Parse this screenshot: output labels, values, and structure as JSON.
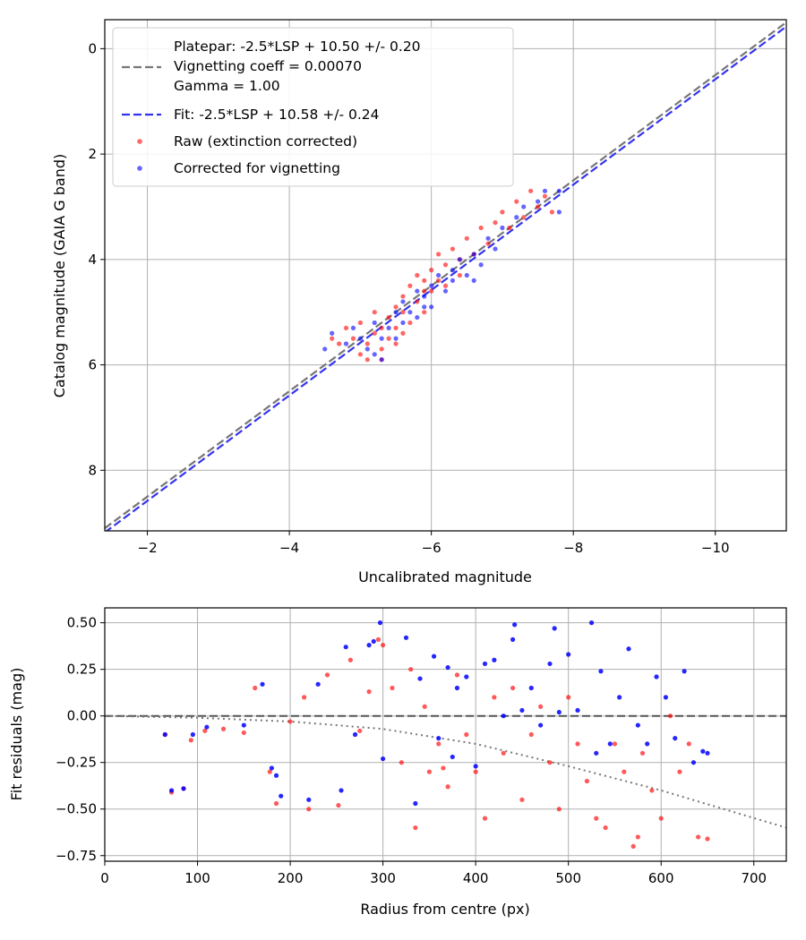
{
  "chart_data": [
    {
      "type": "scatter",
      "xlabel": "Uncalibrated magnitude",
      "ylabel": "Catalog magnitude (GAIA G band)",
      "xlim": [
        -1.4,
        -11.0
      ],
      "ylim": [
        9.15,
        -0.55
      ],
      "x_inverted": true,
      "y_inverted": true,
      "grid": true,
      "xticks": [
        -2,
        -4,
        -6,
        -8,
        -10
      ],
      "xtick_labels": [
        "−2",
        "−4",
        "−6",
        "−8",
        "−10"
      ],
      "yticks": [
        0,
        2,
        4,
        6,
        8
      ],
      "ytick_labels": [
        "0",
        "2",
        "4",
        "6",
        "8"
      ],
      "legend": {
        "placement": "upper-left",
        "platepar_line1": "Platepar: -2.5*LSP + 10.50 +/- 0.20",
        "platepar_line2": "Vignetting coeff = 0.00070",
        "platepar_line3": "Gamma = 1.00",
        "fit": "Fit: -2.5*LSP + 10.58 +/- 0.24",
        "raw": "Raw (extinction corrected)",
        "corrected": "Corrected for vignetting"
      },
      "lines": [
        {
          "name": "Platepar",
          "slope": -2.5,
          "intercept": 10.5,
          "uncertainty": 0.2,
          "color": "#777777",
          "style": "dashed"
        },
        {
          "name": "Fit",
          "slope": -2.5,
          "intercept": 10.58,
          "uncertainty": 0.24,
          "color": "#3333ee",
          "style": "dashed"
        }
      ],
      "series": [
        {
          "name": "Raw (extinction corrected)",
          "color": "#ff0000",
          "points": [
            [
              -4.6,
              5.5
            ],
            [
              -4.7,
              5.6
            ],
            [
              -4.8,
              5.3
            ],
            [
              -4.9,
              5.5
            ],
            [
              -5.0,
              5.8
            ],
            [
              -5.0,
              5.2
            ],
            [
              -5.1,
              5.9
            ],
            [
              -5.2,
              5.4
            ],
            [
              -5.2,
              5.0
            ],
            [
              -5.3,
              5.7
            ],
            [
              -5.3,
              5.3
            ],
            [
              -5.4,
              5.1
            ],
            [
              -5.4,
              5.5
            ],
            [
              -5.5,
              4.9
            ],
            [
              -5.5,
              5.3
            ],
            [
              -5.5,
              5.6
            ],
            [
              -5.6,
              4.7
            ],
            [
              -5.6,
              5.0
            ],
            [
              -5.7,
              4.5
            ],
            [
              -5.7,
              5.2
            ],
            [
              -5.8,
              4.8
            ],
            [
              -5.8,
              4.3
            ],
            [
              -5.9,
              4.6
            ],
            [
              -5.9,
              5.0
            ],
            [
              -6.0,
              4.2
            ],
            [
              -6.0,
              4.6
            ],
            [
              -6.1,
              4.4
            ],
            [
              -6.1,
              3.9
            ],
            [
              -6.2,
              4.1
            ],
            [
              -6.2,
              4.5
            ],
            [
              -6.3,
              3.8
            ],
            [
              -6.4,
              4.0
            ],
            [
              -6.5,
              3.6
            ],
            [
              -6.6,
              3.9
            ],
            [
              -6.7,
              3.4
            ],
            [
              -6.8,
              3.7
            ],
            [
              -6.9,
              3.3
            ],
            [
              -7.0,
              3.1
            ],
            [
              -7.1,
              3.4
            ],
            [
              -7.2,
              2.9
            ],
            [
              -7.3,
              3.2
            ],
            [
              -7.4,
              2.7
            ],
            [
              -7.5,
              3.0
            ],
            [
              -7.6,
              2.8
            ],
            [
              -7.7,
              3.1
            ],
            [
              -5.1,
              5.6
            ],
            [
              -5.3,
              5.9
            ],
            [
              -5.6,
              5.4
            ],
            [
              -5.9,
              4.4
            ],
            [
              -6.4,
              4.3
            ]
          ]
        },
        {
          "name": "Corrected for vignetting",
          "color": "#0000ff",
          "points": [
            [
              -4.5,
              5.7
            ],
            [
              -4.6,
              5.4
            ],
            [
              -4.8,
              5.6
            ],
            [
              -4.9,
              5.3
            ],
            [
              -5.0,
              5.5
            ],
            [
              -5.1,
              5.7
            ],
            [
              -5.2,
              5.2
            ],
            [
              -5.3,
              5.9
            ],
            [
              -5.3,
              5.5
            ],
            [
              -5.4,
              5.3
            ],
            [
              -5.5,
              5.0
            ],
            [
              -5.6,
              5.2
            ],
            [
              -5.6,
              4.8
            ],
            [
              -5.7,
              5.0
            ],
            [
              -5.8,
              4.6
            ],
            [
              -5.8,
              5.1
            ],
            [
              -5.9,
              4.7
            ],
            [
              -6.0,
              4.5
            ],
            [
              -6.0,
              4.9
            ],
            [
              -6.1,
              4.3
            ],
            [
              -6.2,
              4.6
            ],
            [
              -6.3,
              4.2
            ],
            [
              -6.3,
              4.4
            ],
            [
              -6.4,
              4.0
            ],
            [
              -6.5,
              4.3
            ],
            [
              -6.6,
              3.9
            ],
            [
              -6.7,
              4.1
            ],
            [
              -6.8,
              3.6
            ],
            [
              -6.9,
              3.8
            ],
            [
              -7.0,
              3.4
            ],
            [
              -7.2,
              3.2
            ],
            [
              -7.3,
              3.0
            ],
            [
              -7.5,
              2.9
            ],
            [
              -7.6,
              2.7
            ],
            [
              -7.8,
              2.7
            ],
            [
              -7.8,
              3.1
            ],
            [
              -5.2,
              5.8
            ],
            [
              -5.5,
              5.5
            ],
            [
              -5.9,
              4.9
            ],
            [
              -6.6,
              4.4
            ]
          ]
        }
      ]
    },
    {
      "type": "scatter",
      "xlabel": "Radius from centre (px)",
      "ylabel": "Fit residuals (mag)",
      "xlim": [
        0,
        735
      ],
      "ylim": [
        -0.78,
        0.58
      ],
      "grid": true,
      "xticks": [
        0,
        100,
        200,
        300,
        400,
        500,
        600,
        700
      ],
      "xtick_labels": [
        "0",
        "100",
        "200",
        "300",
        "400",
        "500",
        "600",
        "700"
      ],
      "yticks": [
        0.5,
        0.25,
        0.0,
        -0.25,
        -0.5,
        -0.75
      ],
      "ytick_labels": [
        "0.50",
        "0.25",
        "0.00",
        "−0.25",
        "−0.50",
        "−0.75"
      ],
      "lines": [
        {
          "name": "zero",
          "type": "hline",
          "y": 0.0,
          "color": "#555555",
          "style": "dashed"
        },
        {
          "name": "vignetting curve",
          "type": "curve",
          "color": "#777777",
          "style": "dotted",
          "x": [
            0,
            100,
            200,
            300,
            400,
            500,
            600,
            735
          ],
          "y": [
            0.0,
            -0.01,
            -0.03,
            -0.07,
            -0.15,
            -0.27,
            -0.4,
            -0.6
          ]
        }
      ],
      "series": [
        {
          "name": "Raw (extinction corrected)",
          "color": "#ff0000",
          "points": [
            [
              65,
              -0.1
            ],
            [
              72,
              -0.41
            ],
            [
              85,
              -0.39
            ],
            [
              93,
              -0.13
            ],
            [
              108,
              -0.08
            ],
            [
              128,
              -0.07
            ],
            [
              150,
              -0.09
            ],
            [
              162,
              0.15
            ],
            [
              178,
              -0.3
            ],
            [
              185,
              -0.47
            ],
            [
              200,
              -0.03
            ],
            [
              215,
              0.1
            ],
            [
              220,
              -0.5
            ],
            [
              240,
              0.22
            ],
            [
              252,
              -0.48
            ],
            [
              265,
              0.3
            ],
            [
              275,
              -0.08
            ],
            [
              285,
              0.13
            ],
            [
              295,
              0.41
            ],
            [
              300,
              0.38
            ],
            [
              310,
              0.15
            ],
            [
              320,
              -0.25
            ],
            [
              330,
              0.25
            ],
            [
              335,
              -0.6
            ],
            [
              345,
              0.05
            ],
            [
              350,
              -0.3
            ],
            [
              360,
              -0.15
            ],
            [
              365,
              -0.28
            ],
            [
              370,
              -0.38
            ],
            [
              380,
              0.22
            ],
            [
              390,
              -0.1
            ],
            [
              400,
              -0.3
            ],
            [
              410,
              -0.55
            ],
            [
              420,
              0.1
            ],
            [
              430,
              -0.2
            ],
            [
              440,
              0.15
            ],
            [
              450,
              -0.45
            ],
            [
              460,
              -0.1
            ],
            [
              470,
              0.05
            ],
            [
              480,
              -0.25
            ],
            [
              490,
              -0.5
            ],
            [
              500,
              0.1
            ],
            [
              510,
              -0.15
            ],
            [
              520,
              -0.35
            ],
            [
              530,
              -0.55
            ],
            [
              540,
              -0.6
            ],
            [
              550,
              -0.15
            ],
            [
              560,
              -0.3
            ],
            [
              570,
              -0.7
            ],
            [
              575,
              -0.65
            ],
            [
              580,
              -0.2
            ],
            [
              590,
              -0.4
            ],
            [
              600,
              -0.55
            ],
            [
              610,
              0.0
            ],
            [
              620,
              -0.3
            ],
            [
              630,
              -0.15
            ],
            [
              640,
              -0.65
            ],
            [
              650,
              -0.66
            ]
          ]
        },
        {
          "name": "Corrected for vignetting",
          "color": "#0000ff",
          "points": [
            [
              65,
              -0.1
            ],
            [
              72,
              -0.4
            ],
            [
              85,
              -0.39
            ],
            [
              95,
              -0.1
            ],
            [
              110,
              -0.06
            ],
            [
              150,
              -0.05
            ],
            [
              170,
              0.17
            ],
            [
              180,
              -0.28
            ],
            [
              185,
              -0.32
            ],
            [
              190,
              -0.43
            ],
            [
              220,
              -0.45
            ],
            [
              230,
              0.17
            ],
            [
              255,
              -0.4
            ],
            [
              260,
              0.37
            ],
            [
              270,
              -0.1
            ],
            [
              285,
              0.38
            ],
            [
              290,
              0.4
            ],
            [
              297,
              0.5
            ],
            [
              300,
              -0.23
            ],
            [
              325,
              0.42
            ],
            [
              335,
              -0.47
            ],
            [
              340,
              0.2
            ],
            [
              355,
              0.32
            ],
            [
              360,
              -0.12
            ],
            [
              370,
              0.26
            ],
            [
              375,
              -0.22
            ],
            [
              380,
              0.15
            ],
            [
              390,
              0.21
            ],
            [
              400,
              -0.27
            ],
            [
              410,
              0.28
            ],
            [
              420,
              0.3
            ],
            [
              430,
              0.0
            ],
            [
              440,
              0.41
            ],
            [
              442,
              0.49
            ],
            [
              450,
              0.03
            ],
            [
              460,
              0.15
            ],
            [
              470,
              -0.05
            ],
            [
              480,
              0.28
            ],
            [
              485,
              0.47
            ],
            [
              490,
              0.02
            ],
            [
              500,
              0.33
            ],
            [
              510,
              0.03
            ],
            [
              525,
              0.5
            ],
            [
              530,
              -0.2
            ],
            [
              535,
              0.24
            ],
            [
              545,
              -0.15
            ],
            [
              555,
              0.1
            ],
            [
              565,
              0.36
            ],
            [
              575,
              -0.05
            ],
            [
              585,
              -0.15
            ],
            [
              595,
              0.21
            ],
            [
              605,
              0.1
            ],
            [
              615,
              -0.12
            ],
            [
              625,
              0.24
            ],
            [
              635,
              -0.25
            ],
            [
              645,
              -0.19
            ],
            [
              650,
              -0.2
            ]
          ]
        }
      ]
    }
  ]
}
